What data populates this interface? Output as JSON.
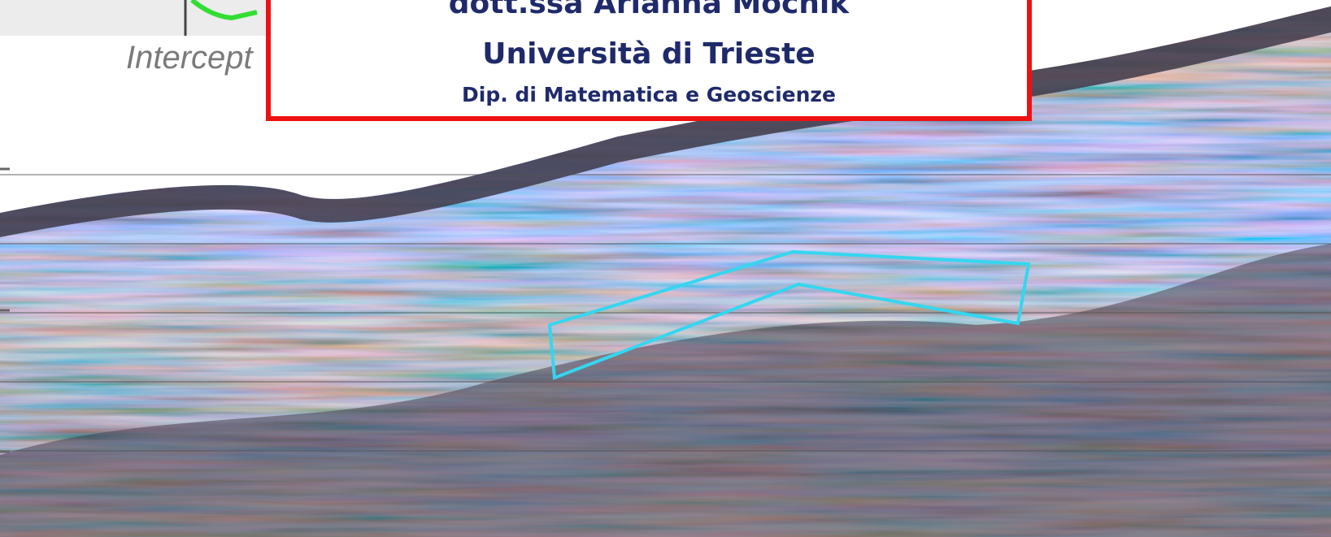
{
  "header": {
    "name": "dott.ssa Arianna Mocnik",
    "university": "Università di Trieste",
    "department": "Dip. di Matematica e Geoscienze"
  },
  "plot": {
    "axis_label": "Intercept"
  }
}
